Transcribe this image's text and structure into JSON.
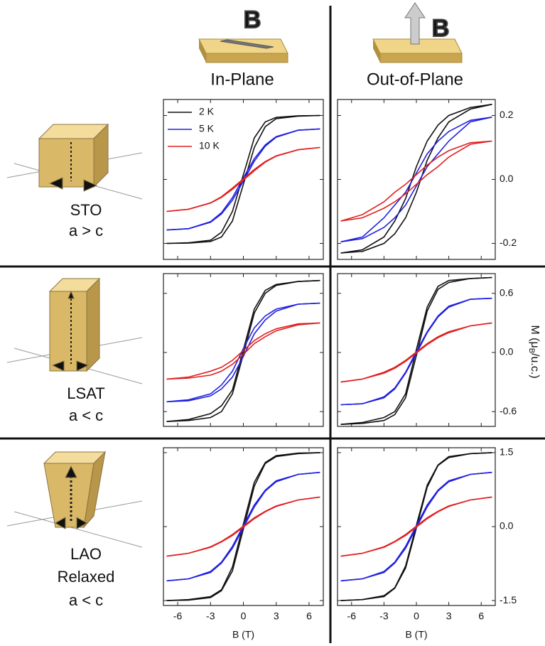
{
  "columns": [
    "In-Plane",
    "Out-of-Plane"
  ],
  "icon_labels": [
    "B",
    "B"
  ],
  "rows": [
    [
      "STO",
      "a > c"
    ],
    [
      "LSAT",
      "a < c"
    ],
    [
      "LAO",
      "Relaxed",
      "a < c"
    ]
  ],
  "y_label": {
    "main": "M (μ",
    "sub": "B",
    "end": "/u.c.)"
  },
  "chart_data": [
    {
      "type": "line",
      "x": [
        -7,
        -5,
        -3,
        -2,
        -1,
        0,
        1,
        2,
        3,
        5,
        7
      ],
      "xlim": [
        -7.3,
        7.3
      ],
      "ylim": [
        -0.25,
        0.25
      ],
      "series": [
        {
          "name": "2 K",
          "color": "#111111",
          "values": [
            -0.2,
            -0.199,
            -0.194,
            -0.18,
            -0.13,
            -0.015,
            0.1,
            0.165,
            0.19,
            0.198,
            0.2
          ],
          "values_down": [
            -0.2,
            -0.198,
            -0.19,
            -0.165,
            -0.1,
            0.015,
            0.13,
            0.18,
            0.194,
            0.199,
            0.2
          ]
        },
        {
          "name": "5 K",
          "color": "#2020e0",
          "values": [
            -0.158,
            -0.154,
            -0.134,
            -0.108,
            -0.065,
            -0.005,
            0.057,
            0.104,
            0.132,
            0.154,
            0.158
          ],
          "values_down": [
            -0.158,
            -0.154,
            -0.132,
            -0.104,
            -0.057,
            0.005,
            0.065,
            0.108,
            0.134,
            0.154,
            0.158
          ]
        },
        {
          "name": "10 K",
          "color": "#e02020",
          "values": [
            -0.1,
            -0.093,
            -0.074,
            -0.056,
            -0.031,
            -0.002,
            0.027,
            0.054,
            0.073,
            0.093,
            0.1
          ],
          "values_down": [
            -0.1,
            -0.093,
            -0.073,
            -0.054,
            -0.027,
            0.002,
            0.031,
            0.056,
            0.074,
            0.093,
            0.1
          ]
        }
      ]
    },
    {
      "type": "line",
      "x": [
        -7,
        -5,
        -3,
        -2,
        -1,
        0,
        1,
        2,
        3,
        5,
        7
      ],
      "xlim": [
        -7.3,
        7.3
      ],
      "ylim": [
        -0.25,
        0.25
      ],
      "yticks": [
        0.2,
        {
          "value": 0,
          "label": "0.0"
        },
        -0.2
      ],
      "series": [
        {
          "color": "#111111",
          "values": [
            -0.23,
            -0.225,
            -0.2,
            -0.17,
            -0.12,
            -0.04,
            0.06,
            0.13,
            0.18,
            0.22,
            0.235
          ],
          "values_down": [
            -0.23,
            -0.22,
            -0.18,
            -0.13,
            -0.06,
            0.04,
            0.12,
            0.17,
            0.2,
            0.225,
            0.235
          ]
        },
        {
          "color": "#2020e0",
          "values": [
            -0.195,
            -0.185,
            -0.15,
            -0.12,
            -0.08,
            -0.02,
            0.04,
            0.08,
            0.12,
            0.18,
            0.195
          ],
          "values_down": [
            -0.195,
            -0.18,
            -0.12,
            -0.08,
            -0.04,
            0.02,
            0.08,
            0.12,
            0.15,
            0.185,
            0.195
          ]
        },
        {
          "color": "#e02020",
          "values": [
            -0.13,
            -0.12,
            -0.09,
            -0.07,
            -0.045,
            -0.015,
            0.015,
            0.04,
            0.07,
            0.11,
            0.12
          ],
          "values_down": [
            -0.13,
            -0.11,
            -0.07,
            -0.04,
            -0.015,
            0.015,
            0.045,
            0.07,
            0.09,
            0.115,
            0.12
          ]
        }
      ]
    },
    {
      "type": "line",
      "x": [
        -7,
        -5,
        -3,
        -2,
        -1,
        0,
        1,
        2,
        3,
        5,
        7
      ],
      "xlim": [
        -7.3,
        7.3
      ],
      "ylim": [
        -0.75,
        0.8
      ],
      "series": [
        {
          "color": "#111111",
          "values": [
            -0.7,
            -0.69,
            -0.66,
            -0.6,
            -0.42,
            -0.02,
            0.4,
            0.6,
            0.68,
            0.72,
            0.73
          ],
          "values_down": [
            -0.7,
            -0.68,
            -0.62,
            -0.54,
            -0.38,
            0.03,
            0.44,
            0.63,
            0.69,
            0.72,
            0.73
          ]
        },
        {
          "color": "#2020e0",
          "values": [
            -0.5,
            -0.49,
            -0.44,
            -0.37,
            -0.25,
            -0.04,
            0.19,
            0.33,
            0.42,
            0.49,
            0.5
          ],
          "values_down": [
            -0.5,
            -0.48,
            -0.42,
            -0.33,
            -0.19,
            0.04,
            0.25,
            0.37,
            0.44,
            0.49,
            0.5
          ]
        },
        {
          "color": "#e02020",
          "values": [
            -0.27,
            -0.26,
            -0.23,
            -0.19,
            -0.12,
            -0.02,
            0.09,
            0.16,
            0.22,
            0.28,
            0.3
          ],
          "values_down": [
            -0.27,
            -0.25,
            -0.19,
            -0.15,
            -0.08,
            0.02,
            0.12,
            0.19,
            0.24,
            0.29,
            0.3
          ]
        }
      ]
    },
    {
      "type": "line",
      "x": [
        -7,
        -5,
        -3,
        -2,
        -1,
        0,
        1,
        2,
        3,
        5,
        7
      ],
      "xlim": [
        -7.3,
        7.3
      ],
      "ylim": [
        -0.75,
        0.8
      ],
      "yticks": [
        0.6,
        {
          "value": 0,
          "label": "0.0"
        },
        -0.6
      ],
      "series": [
        {
          "color": "#111111",
          "values": [
            -0.73,
            -0.72,
            -0.69,
            -0.63,
            -0.46,
            -0.03,
            0.42,
            0.64,
            0.71,
            0.75,
            0.76
          ],
          "values_down": [
            -0.73,
            -0.71,
            -0.66,
            -0.6,
            -0.42,
            0.03,
            0.46,
            0.67,
            0.73,
            0.75,
            0.76
          ]
        },
        {
          "color": "#2020e0",
          "values": [
            -0.53,
            -0.52,
            -0.46,
            -0.37,
            -0.21,
            -0.01,
            0.2,
            0.36,
            0.46,
            0.54,
            0.55
          ],
          "values_down": [
            -0.53,
            -0.52,
            -0.45,
            -0.36,
            -0.2,
            0.01,
            0.21,
            0.37,
            0.47,
            0.54,
            0.55
          ]
        },
        {
          "color": "#e02020",
          "values": [
            -0.3,
            -0.27,
            -0.21,
            -0.16,
            -0.09,
            -0.005,
            0.08,
            0.15,
            0.2,
            0.27,
            0.3
          ],
          "values_down": [
            -0.3,
            -0.27,
            -0.2,
            -0.15,
            -0.08,
            0.005,
            0.09,
            0.16,
            0.21,
            0.27,
            0.3
          ]
        }
      ]
    },
    {
      "type": "line",
      "x": [
        -7,
        -5,
        -3,
        -2,
        -1,
        0,
        1,
        2,
        3,
        5,
        7
      ],
      "xlim": [
        -7.3,
        7.3
      ],
      "ylim": [
        -1.6,
        1.6
      ],
      "xticks": [
        -6,
        -3,
        0,
        3,
        6
      ],
      "x_label": "B (T)",
      "series": [
        {
          "color": "#111111",
          "values": [
            -1.5,
            -1.49,
            -1.44,
            -1.3,
            -0.9,
            -0.05,
            0.82,
            1.28,
            1.42,
            1.48,
            1.5
          ],
          "values_down": [
            -1.5,
            -1.48,
            -1.42,
            -1.28,
            -0.82,
            0.05,
            0.9,
            1.3,
            1.44,
            1.49,
            1.5
          ]
        },
        {
          "color": "#2020e0",
          "values": [
            -1.1,
            -1.06,
            -0.93,
            -0.74,
            -0.44,
            -0.02,
            0.4,
            0.72,
            0.91,
            1.06,
            1.1
          ],
          "values_down": [
            -1.1,
            -1.06,
            -0.91,
            -0.72,
            -0.4,
            0.02,
            0.44,
            0.74,
            0.93,
            1.06,
            1.1
          ]
        },
        {
          "color": "#e02020",
          "values": [
            -0.6,
            -0.54,
            -0.42,
            -0.31,
            -0.18,
            -0.01,
            0.16,
            0.3,
            0.41,
            0.54,
            0.6
          ],
          "values_down": [
            -0.6,
            -0.54,
            -0.41,
            -0.3,
            -0.16,
            0.01,
            0.18,
            0.31,
            0.42,
            0.54,
            0.6
          ]
        }
      ]
    },
    {
      "type": "line",
      "x": [
        -7,
        -5,
        -3,
        -2,
        -1,
        0,
        1,
        2,
        3,
        5,
        7
      ],
      "xlim": [
        -7.3,
        7.3
      ],
      "ylim": [
        -1.6,
        1.6
      ],
      "xticks": [
        -6,
        -3,
        0,
        3,
        6
      ],
      "x_label": "B (T)",
      "yticks": [
        1.5,
        {
          "value": 0,
          "label": "0.0"
        },
        -1.5
      ],
      "series": [
        {
          "color": "#111111",
          "values": [
            -1.5,
            -1.48,
            -1.42,
            -1.25,
            -0.84,
            -0.03,
            0.8,
            1.24,
            1.4,
            1.48,
            1.5
          ],
          "values_down": [
            -1.5,
            -1.48,
            -1.4,
            -1.24,
            -0.8,
            0.03,
            0.84,
            1.25,
            1.42,
            1.48,
            1.5
          ]
        },
        {
          "color": "#2020e0",
          "values": [
            -1.1,
            -1.06,
            -0.93,
            -0.74,
            -0.44,
            -0.02,
            0.4,
            0.72,
            0.91,
            1.06,
            1.1
          ],
          "values_down": [
            -1.1,
            -1.06,
            -0.91,
            -0.72,
            -0.4,
            0.02,
            0.44,
            0.74,
            0.93,
            1.06,
            1.1
          ]
        },
        {
          "color": "#e02020",
          "values": [
            -0.6,
            -0.54,
            -0.42,
            -0.31,
            -0.18,
            -0.01,
            0.16,
            0.3,
            0.41,
            0.54,
            0.6
          ],
          "values_down": [
            -0.6,
            -0.54,
            -0.41,
            -0.3,
            -0.16,
            0.01,
            0.18,
            0.31,
            0.42,
            0.54,
            0.6
          ]
        }
      ]
    }
  ]
}
